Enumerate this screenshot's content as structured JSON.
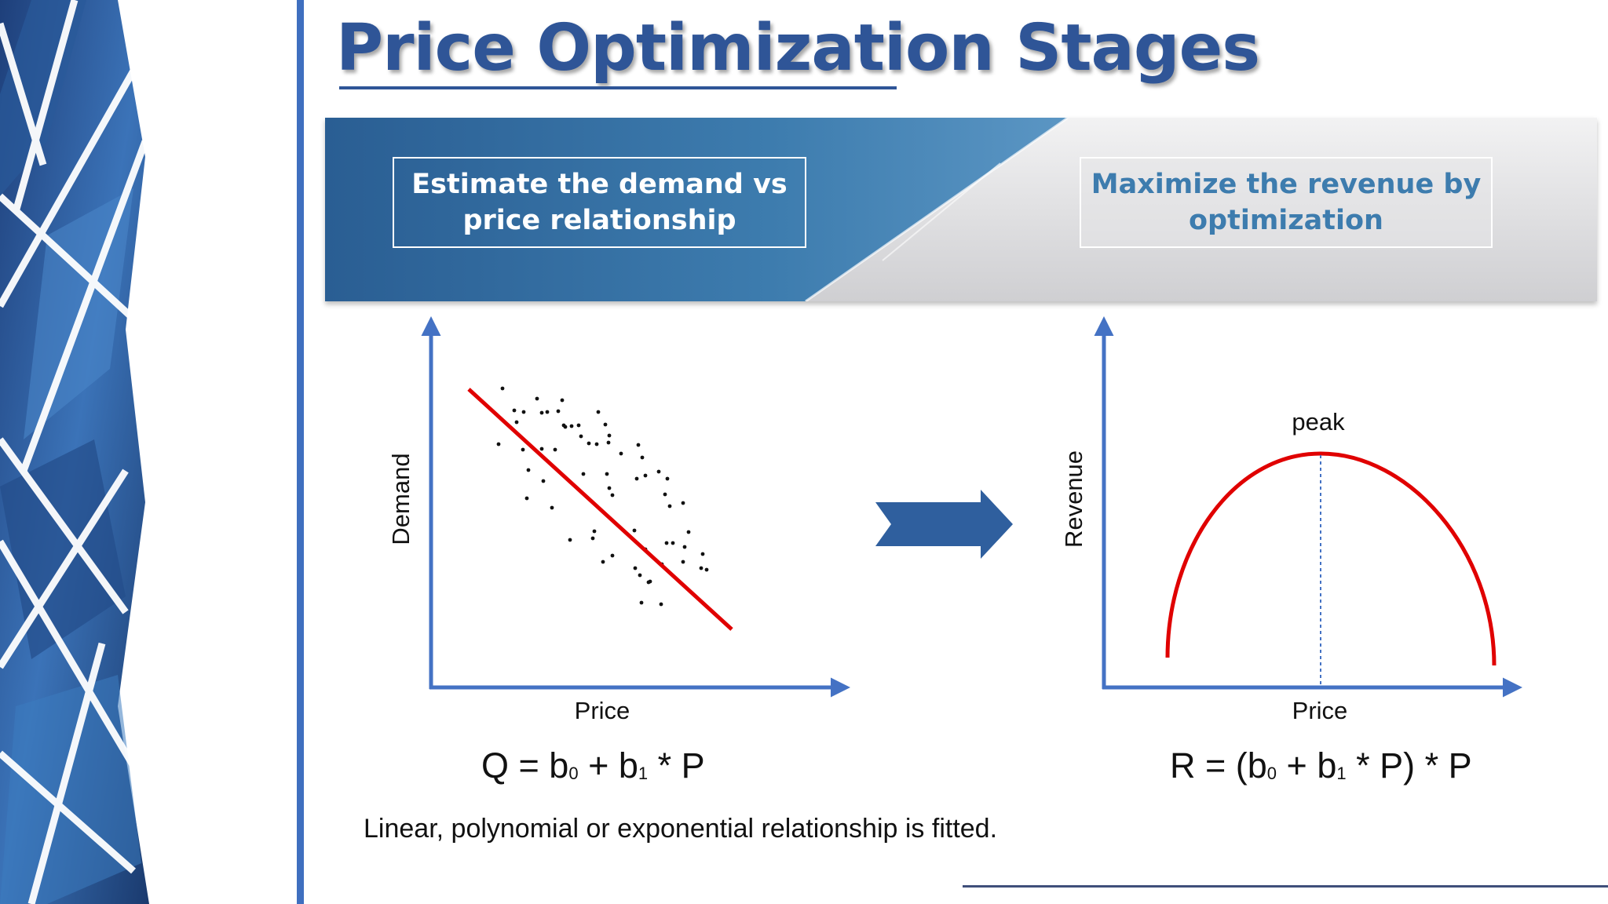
{
  "title": "Price Optimization Stages",
  "stages": [
    {
      "label": "Estimate the demand vs price relationship"
    },
    {
      "label": "Maximize the revenue by optimization"
    }
  ],
  "demand_chart": {
    "xlabel": "Price",
    "ylabel": "Demand"
  },
  "revenue_chart": {
    "xlabel": "Price",
    "ylabel": "Revenue",
    "annotation": "peak"
  },
  "equations": {
    "demand": {
      "lhs": "Q = b",
      "s0": "0",
      "mid": " + b",
      "s1": "1",
      "rhs": " * P"
    },
    "revenue": {
      "lhs": "R = (b",
      "s0": "0",
      "mid": " + b",
      "s1": "1",
      "rhs": " * P) * P"
    }
  },
  "footnote": "Linear, polynomial or exponential relationship is fitted.",
  "colors": {
    "accent": "#2f5597",
    "fit_line": "#e00000",
    "axis": "#4472c4",
    "arrow": "#2f5f9e"
  }
}
